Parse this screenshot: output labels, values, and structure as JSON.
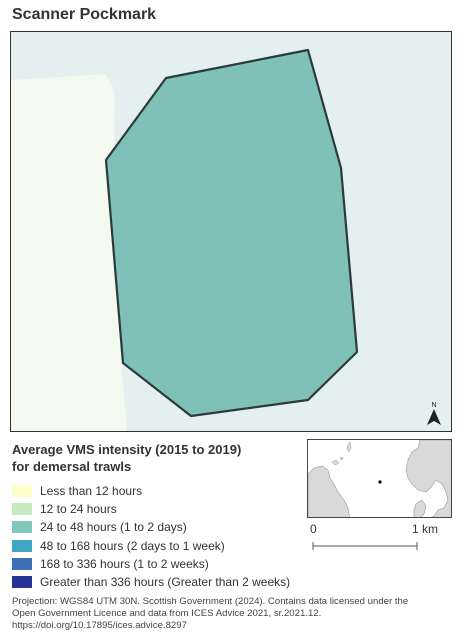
{
  "title": "Scanner Pockmark",
  "legend": {
    "title_line1": "Average VMS intensity (2015 to 2019)",
    "title_line2": "for demersal trawls",
    "items": [
      {
        "label": "Less than 12 hours",
        "color": "#ffffcc"
      },
      {
        "label": "12 to 24 hours",
        "color": "#c7e9c0"
      },
      {
        "label": "24 to 48 hours (1 to 2 days)",
        "color": "#7fc6bb"
      },
      {
        "label": "48 to 168 hours (2 days to 1 week)",
        "color": "#41a6c4"
      },
      {
        "label": "168 to 336 hours (1 to 2 weeks)",
        "color": "#3d73b6"
      },
      {
        "label": "Greater than 336 hours (Greater than 2 weeks)",
        "color": "#253494"
      }
    ]
  },
  "map": {
    "background_color": "#e3f0ef",
    "low_intensity_color": "#f4f9ef",
    "site_fill_color": "#7fc1b8",
    "site_outline_color": "#2b3a3a",
    "north_arrow_label": "N"
  },
  "scale_bar": {
    "start_label": "0",
    "end_label": "1 km"
  },
  "footer": {
    "line1": "Projection: WGS84 UTM 30N. Scottish Government (2024). Contains data licensed under the",
    "line2": "Open Government Licence and data from ICES Advice 2021, sr.2021.12.",
    "line3": "https://doi.org/10.17895/ices.advice.8297"
  }
}
